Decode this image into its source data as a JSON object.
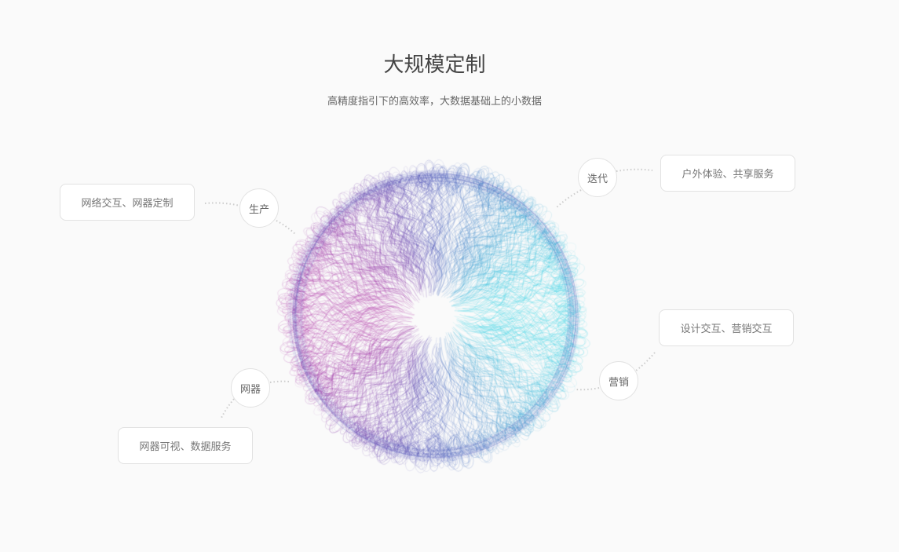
{
  "header": {
    "title": "大规模定制",
    "subtitle": "高精度指引下的高效率，大数据基础上的小数据"
  },
  "nodes": [
    {
      "label": "生产",
      "description": "网络交互、网器定制"
    },
    {
      "label": "迭代",
      "description": "户外体验、共享服务"
    },
    {
      "label": "营销",
      "description": "设计交互、营销交互"
    },
    {
      "label": "网器",
      "description": "网器可视、数据服务"
    }
  ],
  "colors": {
    "sphere_left": "#b23aa8",
    "sphere_right": "#3fd6e6",
    "sphere_edge": "#4a56b8",
    "connector": "#cccccc"
  }
}
